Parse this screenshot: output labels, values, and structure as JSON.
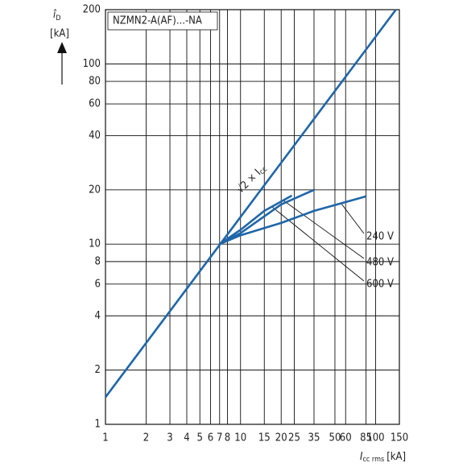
{
  "chart_data": {
    "type": "line",
    "title": "NZMN2-A(AF)...-NA",
    "y_label": {
      "symbol": "î",
      "sub": "D",
      "unit": "[kA]"
    },
    "x_label": {
      "symbol": "I",
      "sub": "cc rms",
      "unit": "[kA]"
    },
    "xscale": "log",
    "yscale": "log",
    "grid": true,
    "xlim": [
      1,
      150
    ],
    "ylim": [
      1,
      200
    ],
    "xticks": [
      1,
      2,
      3,
      4,
      5,
      6,
      7,
      8,
      10,
      15,
      20,
      25,
      35,
      50,
      60,
      85,
      100,
      150
    ],
    "yticks": [
      1,
      2,
      4,
      6,
      8,
      10,
      20,
      40,
      60,
      80,
      100,
      200
    ],
    "reference_line": {
      "label": "√2 × I",
      "sub": "cc",
      "color": "#1f66a8",
      "x": [
        1,
        141.4
      ],
      "values": [
        1.414,
        200
      ]
    },
    "series": [
      {
        "name": "240 V",
        "color": "#1f66a8",
        "x": [
          7,
          10,
          20,
          35,
          85
        ],
        "values": [
          10,
          11.2,
          13.1,
          15.3,
          18.4
        ]
      },
      {
        "name": "480 V",
        "color": "#1f66a8",
        "x": [
          7,
          10,
          20,
          35
        ],
        "values": [
          10,
          11.5,
          16.6,
          20
        ]
      },
      {
        "name": "600 V",
        "color": "#1f66a8",
        "x": [
          7,
          10,
          15,
          24
        ],
        "values": [
          10,
          12,
          15.3,
          18.6
        ]
      }
    ]
  }
}
